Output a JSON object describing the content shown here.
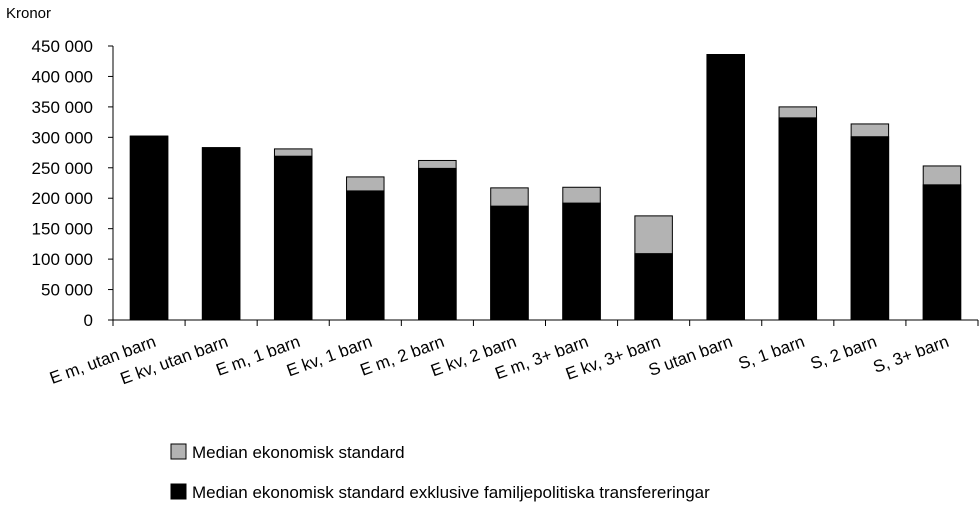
{
  "chart_data": {
    "type": "bar",
    "overlap": true,
    "y_label": "Kronor",
    "categories": [
      "E m, utan barn",
      "E kv, utan barn",
      "E m, 1 barn",
      "E kv, 1 barn",
      "E m, 2 barn",
      "E kv, 2 barn",
      "E m, 3+ barn",
      "E kv, 3+ barn",
      "S utan barn",
      "S, 1 barn",
      "S, 2 barn",
      "S, 3+ barn"
    ],
    "series": [
      {
        "name": "Median ekonomisk standard",
        "color": "#b3b3b3",
        "values": [
          302000,
          283000,
          281000,
          235000,
          262000,
          217000,
          218000,
          171000,
          436000,
          350000,
          322000,
          253000
        ]
      },
      {
        "name": "Median ekonomisk standard exklusive familjepolitiska transfereringar",
        "color": "#000000",
        "values": [
          302000,
          283000,
          269000,
          212000,
          249000,
          187000,
          192000,
          109000,
          436000,
          332000,
          301000,
          222000
        ]
      }
    ],
    "ylim": [
      0,
      450000
    ],
    "yticks": [
      0,
      {
        "value": 50000,
        "label": "50 000"
      },
      {
        "value": 100000,
        "label": "100 000"
      },
      {
        "value": 150000,
        "label": "150 000"
      },
      {
        "value": 200000,
        "label": "200 000"
      },
      {
        "value": 250000,
        "label": "250 000"
      },
      {
        "value": 300000,
        "label": "300 000"
      },
      {
        "value": 350000,
        "label": "350 000"
      },
      {
        "value": 400000,
        "label": "400 000"
      },
      {
        "value": 450000,
        "label": "450 000"
      }
    ],
    "grid": false
  }
}
